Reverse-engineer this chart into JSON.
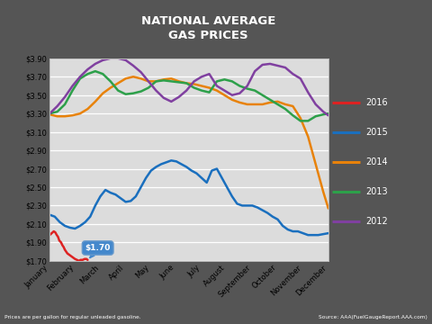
{
  "title": "NATIONAL AVERAGE\nGAS PRICES",
  "title_bg_color": "#c0392b",
  "title_text_color": "#ffffff",
  "footer_left": "Prices are per gallon for regular unleaded gasoline.",
  "footer_right": "Source: AAA(FuelGaugeReport.AAA.com)",
  "outer_bg_color": "#555555",
  "plot_bg_color": "#dcdcdc",
  "chart_border_color": "#aaaaaa",
  "ylim": [
    1.7,
    3.9
  ],
  "ytick_step": 0.2,
  "yticks": [
    1.7,
    1.9,
    2.1,
    2.3,
    2.5,
    2.7,
    2.9,
    3.1,
    3.3,
    3.5,
    3.7,
    3.9
  ],
  "months": [
    "January",
    "February",
    "March",
    "April",
    "May",
    "June",
    "July",
    "August",
    "September",
    "October",
    "November",
    "December"
  ],
  "annotation_label": "$1.70",
  "series": {
    "2016": {
      "color": "#dd2222",
      "lw": 1.8,
      "x": [
        0.0,
        0.08,
        0.16,
        0.22,
        0.28,
        0.33,
        0.38,
        0.45,
        0.5,
        0.55,
        0.6,
        0.65,
        0.7,
        0.75,
        0.8,
        0.85,
        0.9,
        0.95,
        1.0,
        1.08,
        1.15,
        1.22,
        1.3,
        1.38,
        1.45,
        1.5
      ],
      "y": [
        1.98,
        2.0,
        2.02,
        2.01,
        1.98,
        1.96,
        1.92,
        1.9,
        1.87,
        1.85,
        1.82,
        1.8,
        1.78,
        1.77,
        1.76,
        1.75,
        1.74,
        1.73,
        1.72,
        1.71,
        1.7,
        1.71,
        1.71,
        1.72,
        1.72,
        1.71
      ]
    },
    "2015": {
      "color": "#1a6fbe",
      "lw": 1.8,
      "x": [
        0.0,
        0.2,
        0.4,
        0.6,
        0.8,
        1.0,
        1.2,
        1.4,
        1.6,
        1.8,
        2.0,
        2.2,
        2.4,
        2.6,
        2.8,
        3.0,
        3.2,
        3.4,
        3.6,
        3.8,
        4.0,
        4.2,
        4.4,
        4.6,
        4.8,
        5.0,
        5.2,
        5.4,
        5.6,
        5.8,
        6.0,
        6.2,
        6.4,
        6.6,
        6.8,
        7.0,
        7.2,
        7.4,
        7.6,
        7.8,
        8.0,
        8.2,
        8.4,
        8.6,
        8.8,
        9.0,
        9.2,
        9.4,
        9.6,
        9.8,
        10.0,
        10.2,
        10.4,
        10.6,
        10.8,
        11.0
      ],
      "y": [
        2.2,
        2.18,
        2.12,
        2.08,
        2.06,
        2.05,
        2.08,
        2.12,
        2.18,
        2.3,
        2.4,
        2.47,
        2.44,
        2.42,
        2.38,
        2.34,
        2.35,
        2.4,
        2.5,
        2.6,
        2.68,
        2.72,
        2.75,
        2.77,
        2.79,
        2.78,
        2.75,
        2.72,
        2.68,
        2.65,
        2.6,
        2.55,
        2.68,
        2.7,
        2.6,
        2.5,
        2.4,
        2.32,
        2.3,
        2.3,
        2.3,
        2.28,
        2.25,
        2.22,
        2.18,
        2.15,
        2.08,
        2.04,
        2.02,
        2.02,
        2.0,
        1.98,
        1.98,
        1.98,
        1.99,
        2.0
      ]
    },
    "2014": {
      "color": "#e8820a",
      "lw": 1.8,
      "x": [
        0.0,
        0.3,
        0.6,
        0.9,
        1.2,
        1.5,
        1.8,
        2.1,
        2.4,
        2.7,
        3.0,
        3.3,
        3.6,
        3.9,
        4.2,
        4.5,
        4.8,
        5.1,
        5.4,
        5.7,
        6.0,
        6.3,
        6.6,
        6.9,
        7.2,
        7.5,
        7.8,
        8.1,
        8.4,
        8.7,
        9.0,
        9.3,
        9.6,
        9.9,
        10.2,
        10.5,
        10.8,
        11.0
      ],
      "y": [
        3.29,
        3.27,
        3.27,
        3.28,
        3.3,
        3.35,
        3.43,
        3.52,
        3.58,
        3.63,
        3.68,
        3.7,
        3.68,
        3.65,
        3.65,
        3.67,
        3.68,
        3.65,
        3.63,
        3.62,
        3.6,
        3.58,
        3.55,
        3.5,
        3.45,
        3.42,
        3.4,
        3.4,
        3.4,
        3.42,
        3.43,
        3.4,
        3.38,
        3.25,
        3.05,
        2.75,
        2.45,
        2.27
      ]
    },
    "2013": {
      "color": "#2da04a",
      "lw": 1.8,
      "x": [
        0.0,
        0.3,
        0.6,
        0.9,
        1.2,
        1.5,
        1.8,
        2.1,
        2.4,
        2.7,
        3.0,
        3.3,
        3.6,
        3.9,
        4.2,
        4.5,
        4.8,
        5.1,
        5.4,
        5.7,
        6.0,
        6.3,
        6.6,
        6.9,
        7.2,
        7.5,
        7.8,
        8.1,
        8.4,
        8.7,
        9.0,
        9.3,
        9.6,
        9.9,
        10.2,
        10.5,
        10.8,
        11.0
      ],
      "y": [
        3.3,
        3.32,
        3.4,
        3.55,
        3.68,
        3.73,
        3.76,
        3.73,
        3.65,
        3.55,
        3.51,
        3.52,
        3.54,
        3.58,
        3.65,
        3.66,
        3.65,
        3.64,
        3.63,
        3.58,
        3.55,
        3.53,
        3.65,
        3.67,
        3.65,
        3.6,
        3.57,
        3.55,
        3.5,
        3.45,
        3.4,
        3.35,
        3.28,
        3.22,
        3.22,
        3.27,
        3.29,
        3.3
      ]
    },
    "2012": {
      "color": "#8040a0",
      "lw": 1.8,
      "x": [
        0.0,
        0.3,
        0.6,
        0.9,
        1.2,
        1.5,
        1.8,
        2.1,
        2.4,
        2.7,
        3.0,
        3.3,
        3.6,
        3.9,
        4.2,
        4.5,
        4.8,
        5.1,
        5.4,
        5.7,
        6.0,
        6.3,
        6.6,
        6.9,
        7.2,
        7.5,
        7.8,
        8.1,
        8.4,
        8.7,
        9.0,
        9.3,
        9.6,
        9.9,
        10.2,
        10.5,
        10.8,
        11.0
      ],
      "y": [
        3.3,
        3.38,
        3.48,
        3.6,
        3.7,
        3.78,
        3.84,
        3.88,
        3.9,
        3.9,
        3.88,
        3.82,
        3.75,
        3.65,
        3.55,
        3.47,
        3.43,
        3.48,
        3.55,
        3.65,
        3.7,
        3.73,
        3.6,
        3.55,
        3.5,
        3.52,
        3.6,
        3.76,
        3.83,
        3.84,
        3.82,
        3.8,
        3.73,
        3.68,
        3.53,
        3.4,
        3.32,
        3.28
      ]
    }
  },
  "legend_order": [
    "2016",
    "2015",
    "2014",
    "2013",
    "2012"
  ]
}
